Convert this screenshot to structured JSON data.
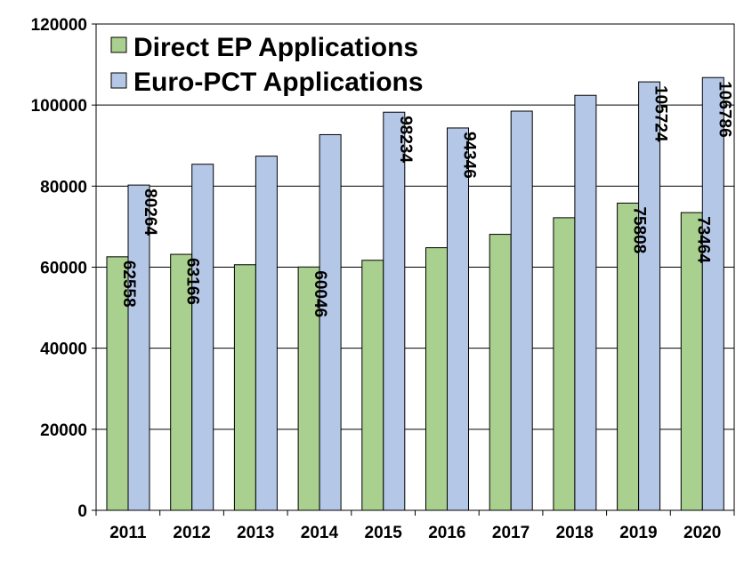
{
  "chart_data": {
    "type": "bar",
    "categories": [
      "2011",
      "2012",
      "2013",
      "2014",
      "2015",
      "2016",
      "2017",
      "2018",
      "2019",
      "2020"
    ],
    "series": [
      {
        "name": "Direct EP Applications",
        "color": "#a9d08e",
        "values": [
          62558,
          63166,
          60600,
          60046,
          61700,
          64800,
          68100,
          72200,
          75808,
          73464
        ],
        "labels": [
          "62558",
          "63166",
          "",
          "60046",
          "",
          "",
          "",
          "",
          "75808",
          "73464"
        ]
      },
      {
        "name": "Euro-PCT Applications",
        "color": "#b4c7e7",
        "values": [
          80264,
          85400,
          87400,
          92700,
          98234,
          94346,
          98500,
          102400,
          105724,
          106786
        ],
        "labels": [
          "80264",
          "",
          "",
          "",
          "98234",
          "94346",
          "",
          "",
          "105724",
          "106786"
        ]
      }
    ],
    "y_ticks": [
      "0",
      "20000",
      "40000",
      "60000",
      "80000",
      "100000",
      "120000"
    ],
    "ylim": [
      0,
      120000
    ],
    "grid": true,
    "legend_position": "top-left"
  }
}
